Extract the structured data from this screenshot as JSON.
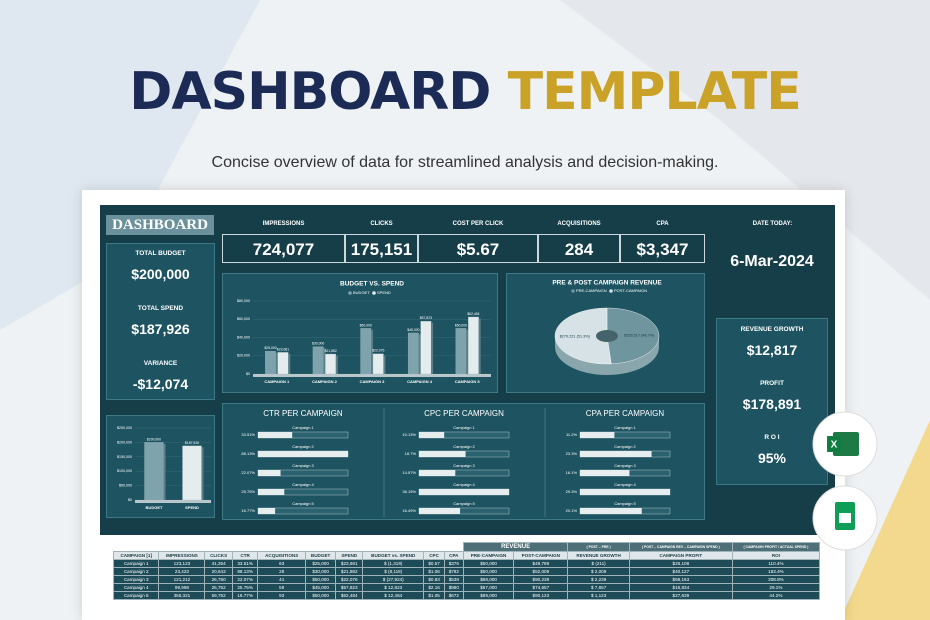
{
  "header": {
    "title_a": "DASHBOARD",
    "title_b": "TEMPLATE",
    "subtitle": "Concise overview of data for streamlined analysis and decision-making."
  },
  "dashboard": {
    "label": "DASHBOARD",
    "kpis": [
      {
        "label": "IMPRESSIONS",
        "value": "724,077"
      },
      {
        "label": "CLICKS",
        "value": "175,151"
      },
      {
        "label": "COST PER CLICK",
        "value": "$5.67"
      },
      {
        "label": "ACQUISITIONS",
        "value": "284"
      },
      {
        "label": "CPA",
        "value": "$3,347"
      }
    ],
    "date": {
      "label": "DATE TODAY:",
      "value": "6-Mar-2024"
    },
    "summary": [
      {
        "label": "TOTAL BUDGET",
        "value": "$200,000"
      },
      {
        "label": "TOTAL SPEND",
        "value": "$187,926"
      },
      {
        "label": "VARIANCE",
        "value": "-$12,074"
      }
    ],
    "results": [
      {
        "label": "REVENUE GROWTH",
        "value": "$12,817"
      },
      {
        "label": "PROFIT",
        "value": "$178,891"
      },
      {
        "label": "R O I",
        "value": "95%"
      }
    ],
    "charts": {
      "totals": {
        "type": "bar",
        "categories": [
          "BUDGET",
          "SPEND"
        ],
        "values": [
          200000,
          187926
        ],
        "value_labels": [
          "$200,000",
          "$187,926"
        ],
        "colors": [
          "#7ea3ad",
          "#e4ecee"
        ],
        "ylim": [
          0,
          250000
        ],
        "yticks": [
          {
            "value": 0,
            "label": "$0"
          },
          {
            "value": 50000,
            "label": "$50,000"
          },
          {
            "value": 100000,
            "label": "$100,000"
          },
          {
            "value": 150000,
            "label": "$150,000"
          },
          {
            "value": 200000,
            "label": "$200,000"
          },
          {
            "value": 250000,
            "label": "$250,000"
          }
        ]
      },
      "budget_spend": {
        "type": "bar",
        "title": "BUDGET VS. SPEND",
        "categories": [
          "CAMPAIGN 1",
          "CAMPAIGN 2",
          "CAMPAIGN 3",
          "CAMPAIGN 4",
          "CAMPAIGN 5"
        ],
        "series": [
          {
            "name": "BUDGET",
            "color": "#7ea3ad",
            "values": [
              25000,
              30000,
              50000,
              45000,
              50000
            ],
            "value_labels": [
              "$25,000",
              "$30,000",
              "$50,000",
              "$45,000",
              "$50,000"
            ]
          },
          {
            "name": "SPEND",
            "color": "#e4ecee",
            "values": [
              23681,
              21882,
              22076,
              57823,
              62484
            ],
            "value_labels": [
              "$23,681",
              "$21,882",
              "$22,076",
              "$57,823",
              "$62,484"
            ]
          }
        ],
        "ylim": [
          0,
          80000
        ],
        "yticks": [
          {
            "value": 0,
            "label": "$0"
          },
          {
            "value": 20000,
            "label": "$20,000"
          },
          {
            "value": 40000,
            "label": "$40,000"
          },
          {
            "value": 60000,
            "label": "$60,000"
          },
          {
            "value": 80000,
            "label": "$80,000"
          }
        ]
      },
      "revenue": {
        "type": "pie",
        "title": "PRE & POST CAMPAIGN REVENUE",
        "categories": [
          "PRE-CAMPAIGN",
          "POST-CAMPAIGN"
        ],
        "values": [
          256517,
          270221
        ],
        "value_labels": [
          "$256,517 (48.7%)",
          "$270,221 (51.3%)"
        ],
        "colors": [
          "#6f959f",
          "#d6e2e6"
        ]
      },
      "ctr": {
        "type": "hbar",
        "title": "CTR PER CAMPAIGN",
        "categories": [
          "Campaign 1",
          "Campaign 2",
          "Campaign 3",
          "Campaign 4",
          "Campaign 5"
        ],
        "values": [
          33.51,
          88.13,
          22.07,
          25.75,
          16.77
        ],
        "value_labels": [
          "33.51%",
          "88.13%",
          "22.07%",
          "25.75%",
          "16.77%"
        ]
      },
      "cpc": {
        "type": "hbar",
        "title": "CPC PER CAMPAIGN",
        "categories": [
          "Campaign 1",
          "Campaign 2",
          "Campaign 3",
          "Campaign 4",
          "Campaign 5"
        ],
        "values": [
          10.13,
          18.7,
          14.57,
          36.15,
          16.49
        ],
        "value_labels": [
          "10.13%",
          "18.7%",
          "14.57%",
          "36.15%",
          "16.49%"
        ]
      },
      "cpa": {
        "type": "hbar",
        "title": "CPA PER CAMPAIGN",
        "categories": [
          "Campaign 1",
          "Campaign 2",
          "Campaign 3",
          "Campaign 4",
          "Campaign 5"
        ],
        "values": [
          11.2,
          23.3,
          16.1,
          29.3,
          20.1
        ],
        "value_labels": [
          "11.2%",
          "23.3%",
          "16.1%",
          "29.3%",
          "20.1%"
        ]
      }
    }
  },
  "table": {
    "group": "REVENUE",
    "notes": [
      "( POST – PRE )",
      "( POST – CAMPAIGN REV – CAMPAIGN SPEND )",
      "( CAMPAIGN PROFIT / ACTUAL SPEND )"
    ],
    "columns": [
      "CAMPAIGN [1]",
      "IMPRESSIONS",
      "CLICKS",
      "CTR",
      "ACQUISITIONS",
      "BUDGET",
      "SPEND",
      "BUDGET vs. SPEND",
      "CPC",
      "CPA",
      "PRE-CAMPAIGN",
      "POST-CAMPAIGN",
      "REVENUE GROWTH",
      "CAMPAIGN PROFIT",
      "ROI"
    ],
    "rows": [
      [
        "Campaign 1",
        "123,123",
        "41,254",
        "33.51%",
        "63",
        "$25,000",
        "$23,681",
        "$ (1,319)",
        "$0.57",
        "$376",
        "$50,000",
        "$49,789",
        "$ (211)",
        "$26,108",
        "110.4%"
      ],
      [
        "Campaign 2",
        "23,423",
        "20,643",
        "88.13%",
        "28",
        "$30,000",
        "$21,882",
        "$ (8,118)",
        "$1.06",
        "$782",
        "$50,000",
        "$52,009",
        "$ 2,009",
        "$40,127",
        "183.4%"
      ],
      [
        "Campaign 3",
        "121,212",
        "26,750",
        "22.07%",
        "41",
        "$50,000",
        "$22,076",
        "$ (27,924)",
        "$0.83",
        "$538",
        "$88,000",
        "$90,239",
        "$ 2,239",
        "$68,163",
        "308.8%"
      ],
      [
        "Campaign 4",
        "99,998",
        "25,752",
        "25.75%",
        "59",
        "$45,000",
        "$57,823",
        "$ 12,823",
        "$2.16",
        "$980",
        "$67,000",
        "$74,657",
        "$ 7,657",
        "$16,834",
        "29.1%"
      ],
      [
        "Campaign 5",
        "356,321",
        "59,752",
        "16.77%",
        "93",
        "$50,000",
        "$62,484",
        "$ 12,484",
        "$1.05",
        "$672",
        "$89,000",
        "$90,123",
        "$ 1,123",
        "$27,639",
        "44.2%"
      ]
    ]
  }
}
